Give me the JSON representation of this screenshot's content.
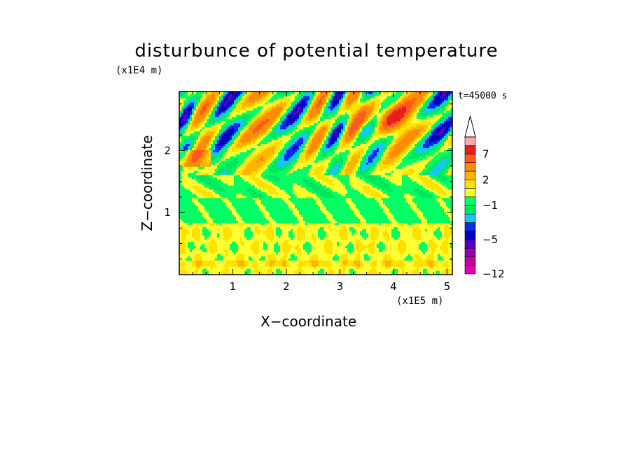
{
  "chart_data": {
    "type": "heatmap",
    "title": "disturbunce of potential temperature",
    "xlabel": "X−coordinate",
    "ylabel": "Z−coordinate",
    "x_unit": "(x1E5 m)",
    "z_unit": "(x1E4 m)",
    "time_label": "t=45000 s",
    "xlim": [
      0,
      5.1
    ],
    "ylim": [
      0,
      2.95
    ],
    "x_ticks": [
      1,
      2,
      3,
      4,
      5
    ],
    "x_tick_labels": [
      "1",
      "2",
      "3",
      "4",
      "5"
    ],
    "y_ticks": [
      1,
      2
    ],
    "y_tick_labels": [
      "1",
      "2"
    ],
    "colorbar": {
      "levels": [
        -12,
        -10,
        -8,
        -6,
        -5,
        -4,
        -3,
        -2,
        -1,
        0,
        1,
        2,
        3,
        5,
        7,
        9,
        11
      ],
      "labels": [
        {
          "value": -12,
          "text": "−12"
        },
        {
          "value": -5,
          "text": "−5"
        },
        {
          "value": -1,
          "text": "−1"
        },
        {
          "value": 2,
          "text": "2"
        },
        {
          "value": 7,
          "text": "7"
        }
      ],
      "colors": [
        "#e600b4",
        "#c3009b",
        "#9100b4",
        "#5000c8",
        "#0000b4",
        "#0a2ce6",
        "#14c8ff",
        "#00e65a",
        "#00ff64",
        "#ffff32",
        "#ffe100",
        "#ffb400",
        "#ff8c00",
        "#ff5a1e",
        "#e61e1e",
        "#ffaaaa"
      ],
      "extend": "max"
    },
    "bands": [
      {
        "z": [
          0.0,
          0.12
        ],
        "level": "yellow"
      },
      {
        "z": [
          0.12,
          0.22
        ],
        "level": "orange-light"
      },
      {
        "z": [
          0.22,
          0.85
        ],
        "level": "yellow"
      },
      {
        "z": [
          0.85,
          1.25
        ],
        "level": "green"
      },
      {
        "z": [
          1.25,
          1.6
        ],
        "level": "mixed"
      },
      {
        "z": [
          1.6,
          2.95
        ],
        "level": "waves"
      }
    ]
  }
}
